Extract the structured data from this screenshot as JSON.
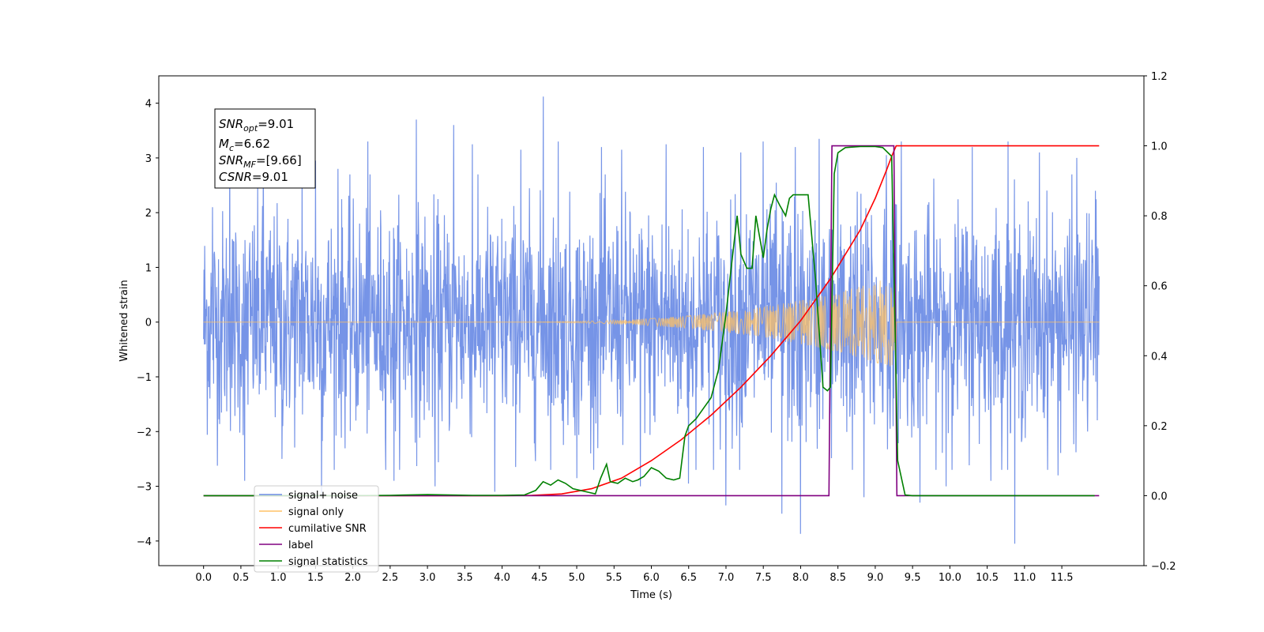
{
  "chart_data": {
    "type": "line",
    "xlabel": "Time (s)",
    "ylabel": "Whitened strain",
    "xlim": [
      -0.6,
      12.6
    ],
    "ylim": [
      -4.45,
      4.5
    ],
    "y2lim": [
      -0.2,
      1.2
    ],
    "x_ticks": [
      "0.0",
      "0.5",
      "1.0",
      "1.5",
      "2.0",
      "2.5",
      "3.0",
      "3.5",
      "4.0",
      "4.5",
      "5.0",
      "5.5",
      "6.0",
      "6.5",
      "7.0",
      "7.5",
      "8.0",
      "8.5",
      "9.0",
      "9.5",
      "10.0",
      "10.5",
      "11.0",
      "11.5"
    ],
    "y_ticks": [
      "−4",
      "−3",
      "−2",
      "−1",
      "0",
      "1",
      "2",
      "3",
      "4"
    ],
    "y2_ticks": [
      "−0.2",
      "0.0",
      "0.2",
      "0.4",
      "0.6",
      "0.8",
      "1.0",
      "1.2"
    ],
    "grid": false,
    "legend_placement": "lower-left",
    "annotation": {
      "snr_opt": {
        "base": "SNR",
        "sub": "opt",
        "value": "=9.01"
      },
      "mc": {
        "base": "M",
        "sub": "c",
        "value": "=6.62"
      },
      "snr_mf": {
        "base": "SNR",
        "sub": "MF",
        "value": "=[9.66]"
      },
      "csnr": {
        "base": "CSNR",
        "sub": "",
        "value": "=9.01"
      }
    },
    "legend": [
      {
        "label": "signal+ noise",
        "color": "#6f8ee6"
      },
      {
        "label": "signal only",
        "color": "#ffc266"
      },
      {
        "label": "cumilative SNR",
        "color": "#ff0000"
      },
      {
        "label": "label",
        "color": "#800080"
      },
      {
        "label": "signal statistics",
        "color": "#008000"
      }
    ],
    "series": [
      {
        "name": "signal+ noise",
        "axis": "left",
        "color": "#6f8ee6",
        "t_start": 0.0,
        "t_end": 12.0,
        "sigma": 1.0,
        "spikes_x": [
          0.12,
          0.35,
          0.55,
          0.8,
          1.05,
          1.32,
          1.5,
          1.58,
          1.8,
          2.2,
          2.55,
          2.85,
          3.1,
          3.35,
          3.6,
          3.9,
          4.25,
          4.55,
          4.75,
          5.0,
          5.33,
          5.6,
          5.85,
          6.2,
          6.5,
          6.7,
          7.0,
          7.2,
          7.5,
          7.75,
          7.93,
          8.0,
          8.25,
          8.5,
          8.85,
          9.15,
          9.35,
          9.6,
          9.95,
          10.3,
          10.55,
          10.78,
          10.87,
          11.2,
          11.45,
          11.7,
          11.95
        ],
        "spikes_y": [
          2.1,
          3.45,
          -2.9,
          3.3,
          -2.5,
          3.05,
          2.95,
          -3.2,
          2.8,
          3.3,
          -2.9,
          3.7,
          -3.0,
          3.6,
          3.25,
          -3.1,
          3.15,
          4.12,
          3.3,
          -2.85,
          3.2,
          3.15,
          -3.0,
          3.25,
          -2.95,
          3.2,
          -3.35,
          3.1,
          3.3,
          -3.5,
          3.2,
          -3.87,
          3.35,
          3.1,
          -3.2,
          3.05,
          3.3,
          -3.3,
          -3.0,
          3.2,
          -2.9,
          3.3,
          -4.05,
          3.1,
          -2.8,
          3.0,
          2.4
        ]
      },
      {
        "name": "signal only",
        "axis": "left",
        "color": "#ffc266",
        "chirp_start": 3.5,
        "chirp_end": 9.28,
        "peak_amplitude": 0.85
      },
      {
        "name": "cumilative SNR",
        "axis": "right",
        "color": "#ff0000",
        "x": [
          0.0,
          4.0,
          4.4,
          4.8,
          5.2,
          5.6,
          6.0,
          6.4,
          6.8,
          7.2,
          7.6,
          8.0,
          8.4,
          8.8,
          9.0,
          9.15,
          9.22,
          9.28,
          10.0,
          11.0,
          12.0
        ],
        "y": [
          0.0,
          0.0,
          0.001,
          0.005,
          0.02,
          0.05,
          0.1,
          0.16,
          0.23,
          0.31,
          0.4,
          0.5,
          0.62,
          0.76,
          0.85,
          0.93,
          0.97,
          1.0,
          1.0,
          1.0,
          1.0
        ]
      },
      {
        "name": "label",
        "axis": "right",
        "color": "#800080",
        "x": [
          0.0,
          8.38,
          8.42,
          9.25,
          9.29,
          12.0
        ],
        "y": [
          0.0,
          0.0,
          1.0,
          1.0,
          0.0,
          0.0
        ]
      },
      {
        "name": "signal statistics",
        "axis": "right",
        "color": "#008000",
        "x": [
          0.0,
          2.0,
          2.5,
          3.0,
          3.3,
          3.6,
          4.0,
          4.3,
          4.45,
          4.55,
          4.65,
          4.75,
          4.85,
          4.95,
          5.05,
          5.15,
          5.25,
          5.32,
          5.4,
          5.45,
          5.55,
          5.65,
          5.75,
          5.82,
          5.9,
          6.0,
          6.1,
          6.2,
          6.3,
          6.38,
          6.45,
          6.5,
          6.6,
          6.7,
          6.8,
          6.9,
          7.0,
          7.08,
          7.15,
          7.2,
          7.28,
          7.35,
          7.4,
          7.5,
          7.55,
          7.6,
          7.65,
          7.72,
          7.8,
          7.85,
          7.9,
          8.0,
          8.1,
          8.2,
          8.3,
          8.36,
          8.4,
          8.45,
          8.5,
          8.6,
          8.8,
          9.0,
          9.1,
          9.22,
          9.3,
          9.4,
          9.5,
          10.0,
          11.0,
          11.94
        ],
        "y": [
          0.0,
          0.0,
          0.001,
          0.003,
          0.002,
          0.001,
          0.001,
          0.002,
          0.015,
          0.04,
          0.03,
          0.045,
          0.035,
          0.02,
          0.015,
          0.01,
          0.005,
          0.05,
          0.09,
          0.04,
          0.035,
          0.05,
          0.04,
          0.045,
          0.055,
          0.08,
          0.07,
          0.05,
          0.045,
          0.05,
          0.17,
          0.2,
          0.22,
          0.25,
          0.28,
          0.36,
          0.52,
          0.67,
          0.8,
          0.69,
          0.65,
          0.65,
          0.8,
          0.68,
          0.76,
          0.82,
          0.86,
          0.83,
          0.8,
          0.85,
          0.86,
          0.86,
          0.86,
          0.62,
          0.31,
          0.3,
          0.31,
          0.92,
          0.98,
          0.995,
          0.998,
          0.998,
          0.995,
          0.97,
          0.1,
          0.002,
          0.0,
          0.0,
          0.0,
          0.0
        ]
      }
    ]
  }
}
